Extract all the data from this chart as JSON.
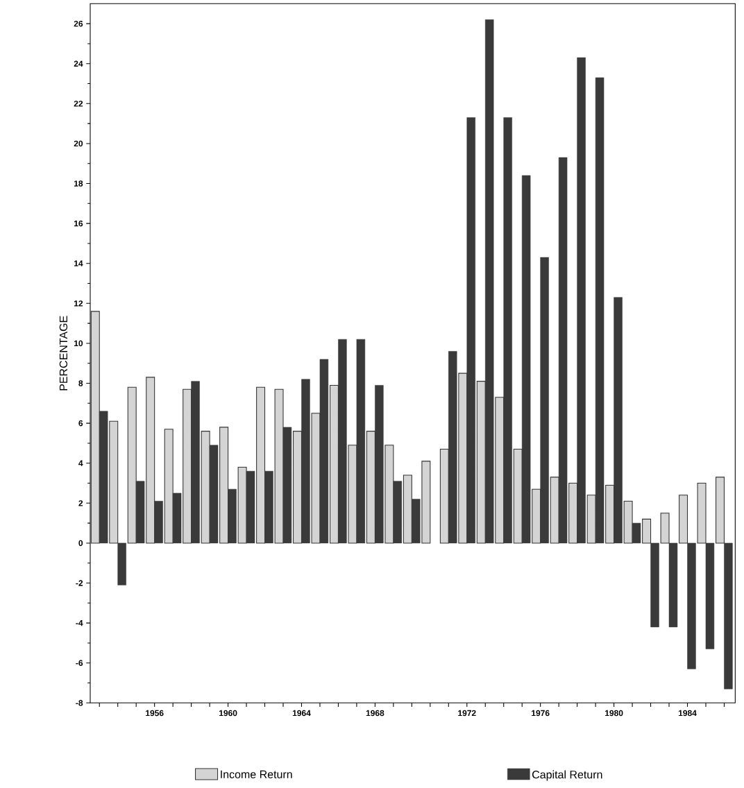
{
  "chart_data": {
    "type": "bar",
    "ylabel": "PERCENTAGE",
    "categories": [
      null,
      null,
      null,
      "1956",
      null,
      null,
      null,
      "1960",
      null,
      null,
      null,
      "1964",
      null,
      null,
      null,
      "1968",
      null,
      null,
      null,
      null,
      "1972",
      null,
      null,
      null,
      "1976",
      null,
      null,
      null,
      "1980",
      null,
      null,
      null,
      "1984",
      null,
      null
    ],
    "series": [
      {
        "name": "Income Return",
        "color": "#d4d4d4",
        "values": [
          11.6,
          6.1,
          7.8,
          8.3,
          5.7,
          7.7,
          5.6,
          5.8,
          3.8,
          7.8,
          7.7,
          5.6,
          6.5,
          7.9,
          4.9,
          5.6,
          4.9,
          3.4,
          4.1,
          4.7,
          8.5,
          8.1,
          7.3,
          4.7,
          2.7,
          3.3,
          3.0,
          2.4,
          2.9,
          2.1,
          1.2,
          1.5,
          2.4,
          3.0,
          3.3
        ]
      },
      {
        "name": "Capital Return",
        "color": "#3a3a3a",
        "values": [
          6.6,
          -2.1,
          3.1,
          2.1,
          2.5,
          8.1,
          4.9,
          2.7,
          3.6,
          3.6,
          5.8,
          8.2,
          9.2,
          10.2,
          10.2,
          7.9,
          3.1,
          2.2,
          null,
          9.6,
          21.3,
          26.2,
          21.3,
          18.4,
          14.3,
          19.3,
          24.3,
          23.3,
          12.3,
          1.0,
          -4.2,
          -4.2,
          -6.3,
          -5.3,
          -7.3
        ]
      }
    ],
    "ylim": [
      -8,
      27
    ],
    "yticks": [
      -8,
      -6,
      -4,
      -2,
      0,
      2,
      4,
      6,
      8,
      10,
      12,
      14,
      16,
      18,
      20,
      22,
      24,
      26
    ],
    "legend": "bottom",
    "grid": false
  }
}
